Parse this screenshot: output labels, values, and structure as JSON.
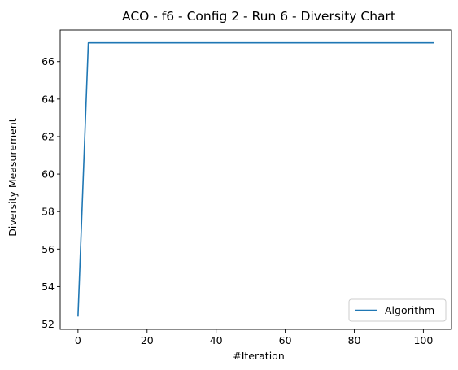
{
  "chart_data": {
    "type": "line",
    "title": "ACO - f6 - Config 2 - Run 6 - Diversity Chart",
    "xlabel": "#Iteration",
    "ylabel": "Diversity Measurement",
    "xlim": [
      -5.15,
      108.15
    ],
    "ylim": [
      51.72,
      67.68
    ],
    "xticks": [
      0,
      20,
      40,
      60,
      80,
      100
    ],
    "yticks": [
      52,
      54,
      56,
      58,
      60,
      62,
      64,
      66
    ],
    "grid": false,
    "legend_position": "lower right",
    "series": [
      {
        "name": "Algorithm",
        "color": "#1f77b4",
        "x": [
          0,
          3,
          103
        ],
        "y": [
          52.4,
          67.0,
          67.0
        ]
      }
    ]
  }
}
